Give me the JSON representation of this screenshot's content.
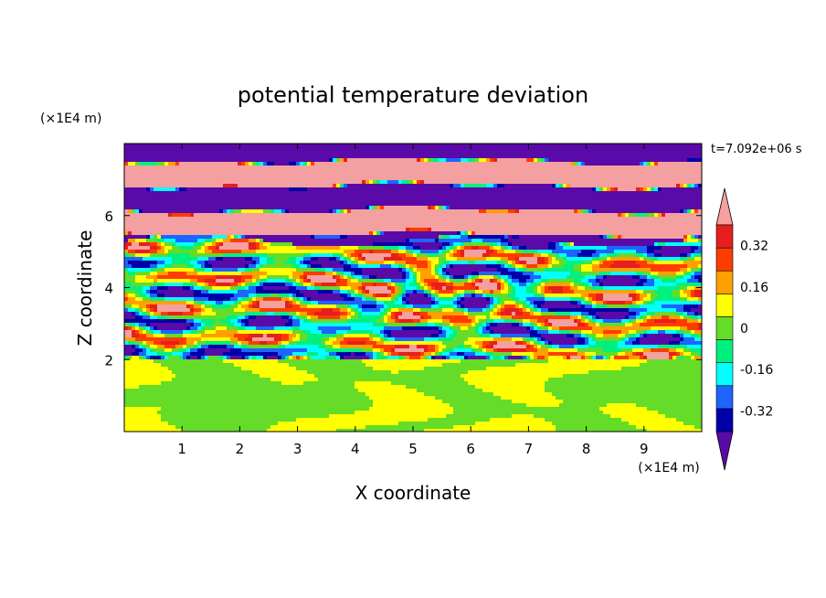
{
  "chart_data": {
    "type": "heatmap",
    "title": "potential temperature deviation",
    "xlabel": "X coordinate",
    "ylabel": "Z coordinate",
    "x_unit": "(×1E4 m)",
    "y_unit": "(×1E4 m)",
    "xlim": [
      0,
      10
    ],
    "ylim": [
      0,
      8
    ],
    "x_ticks": [
      "1",
      "2",
      "3",
      "4",
      "5",
      "6",
      "7",
      "8",
      "9"
    ],
    "y_ticks": [
      "2",
      "4",
      "6"
    ],
    "time_label": "t=7.092e+06 s",
    "colorbar": {
      "levels_labels": [
        "0.32",
        "0.16",
        "0",
        "-0.16",
        "-0.32"
      ],
      "level_edges": [
        -0.4,
        -0.32,
        -0.24,
        -0.16,
        -0.08,
        0,
        0.08,
        0.16,
        0.24,
        0.32,
        0.4
      ],
      "colors": [
        "#5a0aa8",
        "#0000a8",
        "#1e64ff",
        "#00ffff",
        "#00f080",
        "#64dc28",
        "#ffff00",
        "#ffa000",
        "#ff3c00",
        "#e61e1e",
        "#f5a0a0"
      ],
      "over_color": "#f5a0a0",
      "under_color": "#5a0aa8"
    },
    "regions": [
      {
        "z_range": [
          0,
          2
        ],
        "description": "weak deviations, levels 0 to 0.08"
      },
      {
        "z_range": [
          2,
          5.3
        ],
        "description": "mixed small-scale wave pattern, levels -0.32 to 0.32"
      },
      {
        "z_range": [
          5.3,
          8
        ],
        "description": "alternating horizontal bands, above 0.4 and below -0.4"
      }
    ]
  }
}
